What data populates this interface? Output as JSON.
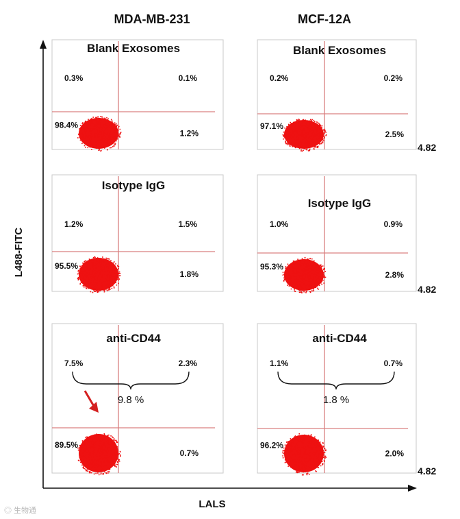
{
  "chart_data": {
    "type": "scatter",
    "columns": [
      "MDA-MB-231",
      "MCF-12A"
    ],
    "xlabel": "LALS",
    "ylabel": "L488-FITC",
    "x_max_label": "4.82",
    "colors": {
      "events": "#ee1111",
      "gates": "#d98080",
      "axes": "#111111"
    },
    "panels": [
      {
        "cell_line": "MDA-MB-231",
        "title": "Blank Exosomes",
        "quadrants": {
          "upper_left": "0.3%",
          "upper_right": "0.1%",
          "lower_left": "98.4%",
          "lower_right": "1.2%"
        },
        "x_max": "",
        "sum_label": ""
      },
      {
        "cell_line": "MCF-12A",
        "title": "Blank Exosomes",
        "quadrants": {
          "upper_left": "0.2%",
          "upper_right": "0.2%",
          "lower_left": "97.1%",
          "lower_right": "2.5%"
        },
        "x_max": "4.82",
        "sum_label": ""
      },
      {
        "cell_line": "MDA-MB-231",
        "title": "Isotype IgG",
        "quadrants": {
          "upper_left": "1.2%",
          "upper_right": "1.5%",
          "lower_left": "95.5%",
          "lower_right": "1.8%"
        },
        "x_max": "",
        "sum_label": ""
      },
      {
        "cell_line": "MCF-12A",
        "title": "Isotype IgG",
        "quadrants": {
          "upper_left": "1.0%",
          "upper_right": "0.9%",
          "lower_left": "95.3%",
          "lower_right": "2.8%"
        },
        "x_max": "4.82",
        "sum_label": ""
      },
      {
        "cell_line": "MDA-MB-231",
        "title": "anti-CD44",
        "quadrants": {
          "upper_left": "7.5%",
          "upper_right": "2.3%",
          "lower_left": "89.5%",
          "lower_right": "0.7%"
        },
        "x_max": "",
        "sum_label": "9.8 %"
      },
      {
        "cell_line": "MCF-12A",
        "title": "anti-CD44",
        "quadrants": {
          "upper_left": "1.1%",
          "upper_right": "0.7%",
          "lower_left": "96.2%",
          "lower_right": "2.0%"
        },
        "x_max": "4.82",
        "sum_label": "1.8 %"
      }
    ]
  }
}
